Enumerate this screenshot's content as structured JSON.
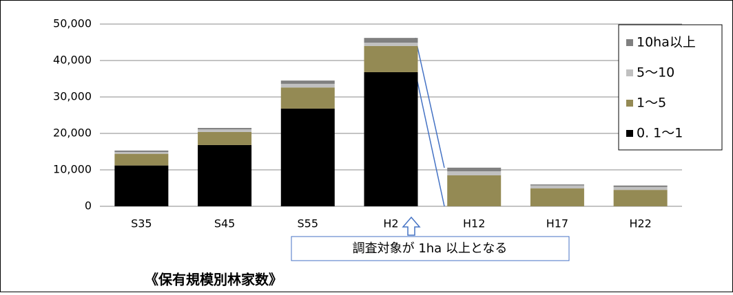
{
  "chart_data": {
    "type": "bar",
    "stacked": true,
    "title": "《保有規模別林家数》",
    "annotation": "調査対象が 1ha 以上となる",
    "categories": [
      "S35",
      "S45",
      "S55",
      "H2",
      "H12",
      "H17",
      "H22"
    ],
    "series": [
      {
        "name": "0. 1～1",
        "color": "#000000",
        "values": [
          11200,
          16800,
          26800,
          36800,
          0,
          0,
          0
        ]
      },
      {
        "name": "1～5",
        "color": "#948a54",
        "values": [
          3200,
          3600,
          5800,
          7200,
          8500,
          4900,
          4500
        ]
      },
      {
        "name": "5～10",
        "color": "#c0c0c0",
        "values": [
          500,
          700,
          1000,
          900,
          1100,
          800,
          800
        ]
      },
      {
        "name": "10ha以上",
        "color": "#808080",
        "values": [
          400,
          400,
          900,
          1300,
          1000,
          300,
          400
        ]
      }
    ],
    "ylim": [
      0,
      50000
    ],
    "yticks": [
      0,
      {
        "value": 10000,
        "label": "10,000"
      },
      {
        "value": 20000,
        "label": "20,000"
      },
      {
        "value": 30000,
        "label": "30,000"
      },
      {
        "value": 40000,
        "label": "40,000"
      },
      {
        "value": 50000,
        "label": "50,000"
      }
    ],
    "grid": true,
    "legend": "right"
  }
}
